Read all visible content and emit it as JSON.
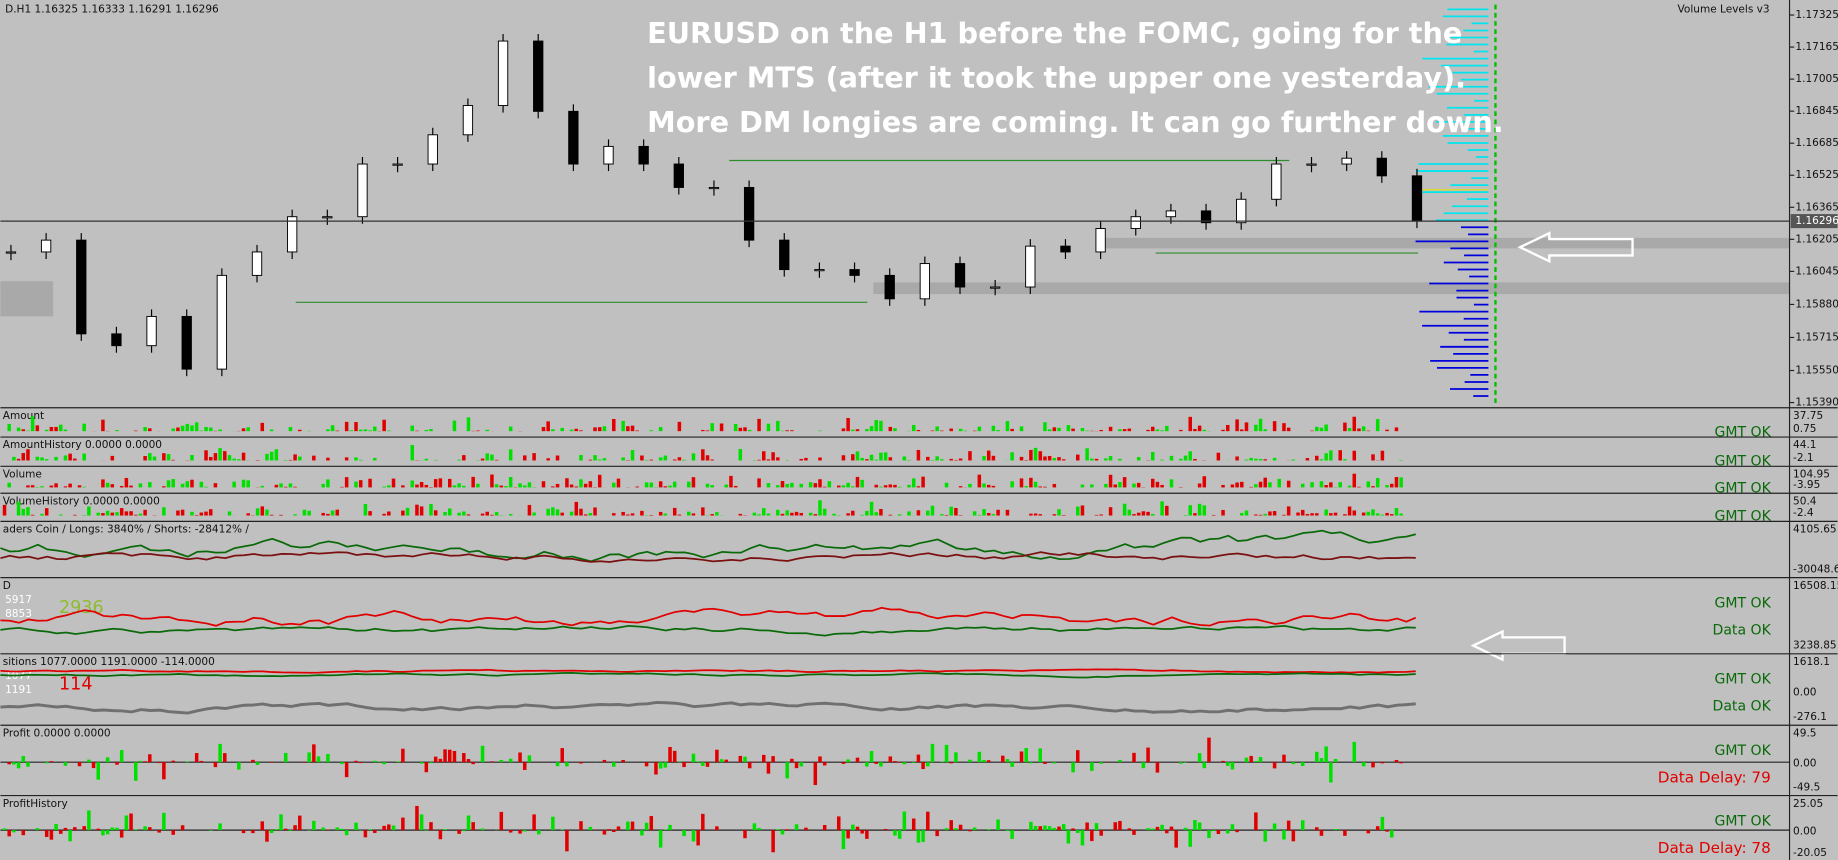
{
  "header": {
    "symbol_info": "D.H1  1.16325 1.16333 1.16291 1.16296",
    "indicator": "Volume Levels v3"
  },
  "annotation": [
    "EURUSD on the H1 before the FOMC, going for the",
    "lower MTS (after it took the upper one yesterday).",
    "More DM longies are coming. It can go further down."
  ],
  "price_axis": {
    "ylim": [
      1.1537,
      1.174
    ],
    "ticks": [
      1.17325,
      1.17165,
      1.17005,
      1.16845,
      1.16685,
      1.16525,
      1.16365,
      1.16205,
      1.16045,
      {
        "value": 1.1588,
        "label": "1.15880"
      },
      1.15715,
      {
        "value": 1.1555,
        "label": "1.15550"
      },
      {
        "value": 1.1539,
        "label": "1.15390"
      }
    ],
    "current": 1.16296
  },
  "candles": {
    "closes": [
      1.16142,
      1.16201,
      1.15733,
      1.15674,
      1.1582,
      1.15557,
      1.16025,
      1.16142,
      1.16318,
      1.16318,
      1.16581,
      1.16581,
      1.16727,
      1.16873,
      1.17195,
      1.16844,
      1.16581,
      1.16669,
      1.16581,
      1.16464,
      1.16464,
      1.16201,
      1.16054,
      1.16054,
      1.16025,
      1.15908,
      1.16084,
      1.15967,
      1.15967,
      1.16171,
      1.16142,
      1.16259,
      1.16318,
      1.16347,
      1.16288,
      1.16405,
      1.16581,
      1.16581,
      1.1661,
      1.16522,
      1.16296
    ]
  },
  "panels": [
    {
      "label": "Amount",
      "axis_labels": [
        "37.75",
        "0.75"
      ],
      "status": [
        "GMT OK"
      ]
    },
    {
      "label": "AmountHistory 0.0000 0.0000",
      "axis_labels": [
        "44.1",
        "-2.1"
      ],
      "status": [
        "GMT OK"
      ]
    },
    {
      "label": "Volume",
      "axis_labels": [
        "104.95",
        "-3.95"
      ],
      "status": [
        "GMT OK"
      ]
    },
    {
      "label": "VolumeHistory 0.0000 0.0000",
      "axis_labels": [
        "50.4",
        "-2.4"
      ],
      "status": [
        "GMT OK"
      ]
    },
    {
      "label": "aders Coin  /  Longs: 3840%  /  Shorts: -28412%  /",
      "axis_labels": [
        "4105.65",
        "-30048.65"
      ],
      "status": []
    },
    {
      "label": "D",
      "axis_labels": [
        "16508.15",
        "3238.85"
      ],
      "status": [
        "GMT OK",
        "Data OK"
      ],
      "values": [
        "5917",
        "8853",
        "2936"
      ]
    },
    {
      "label": "sitions 1077.0000 1191.0000 -114.0000",
      "axis_labels": [
        "1618.1",
        "0.00",
        "-276.1"
      ],
      "status": [
        "GMT OK",
        "Data OK"
      ],
      "values": [
        "1077",
        "1191",
        "114"
      ]
    },
    {
      "label": "Profit 0.0000 0.0000",
      "axis_labels": [
        "49.5",
        "0.00",
        "-49.5"
      ],
      "status": [
        "GMT OK",
        "Data Delay: 79"
      ]
    },
    {
      "label": "ProfitHistory",
      "axis_labels": [
        "25.05",
        "0.00",
        "-20.05"
      ],
      "status": [
        "GMT OK",
        "Data Delay: 78"
      ]
    }
  ]
}
